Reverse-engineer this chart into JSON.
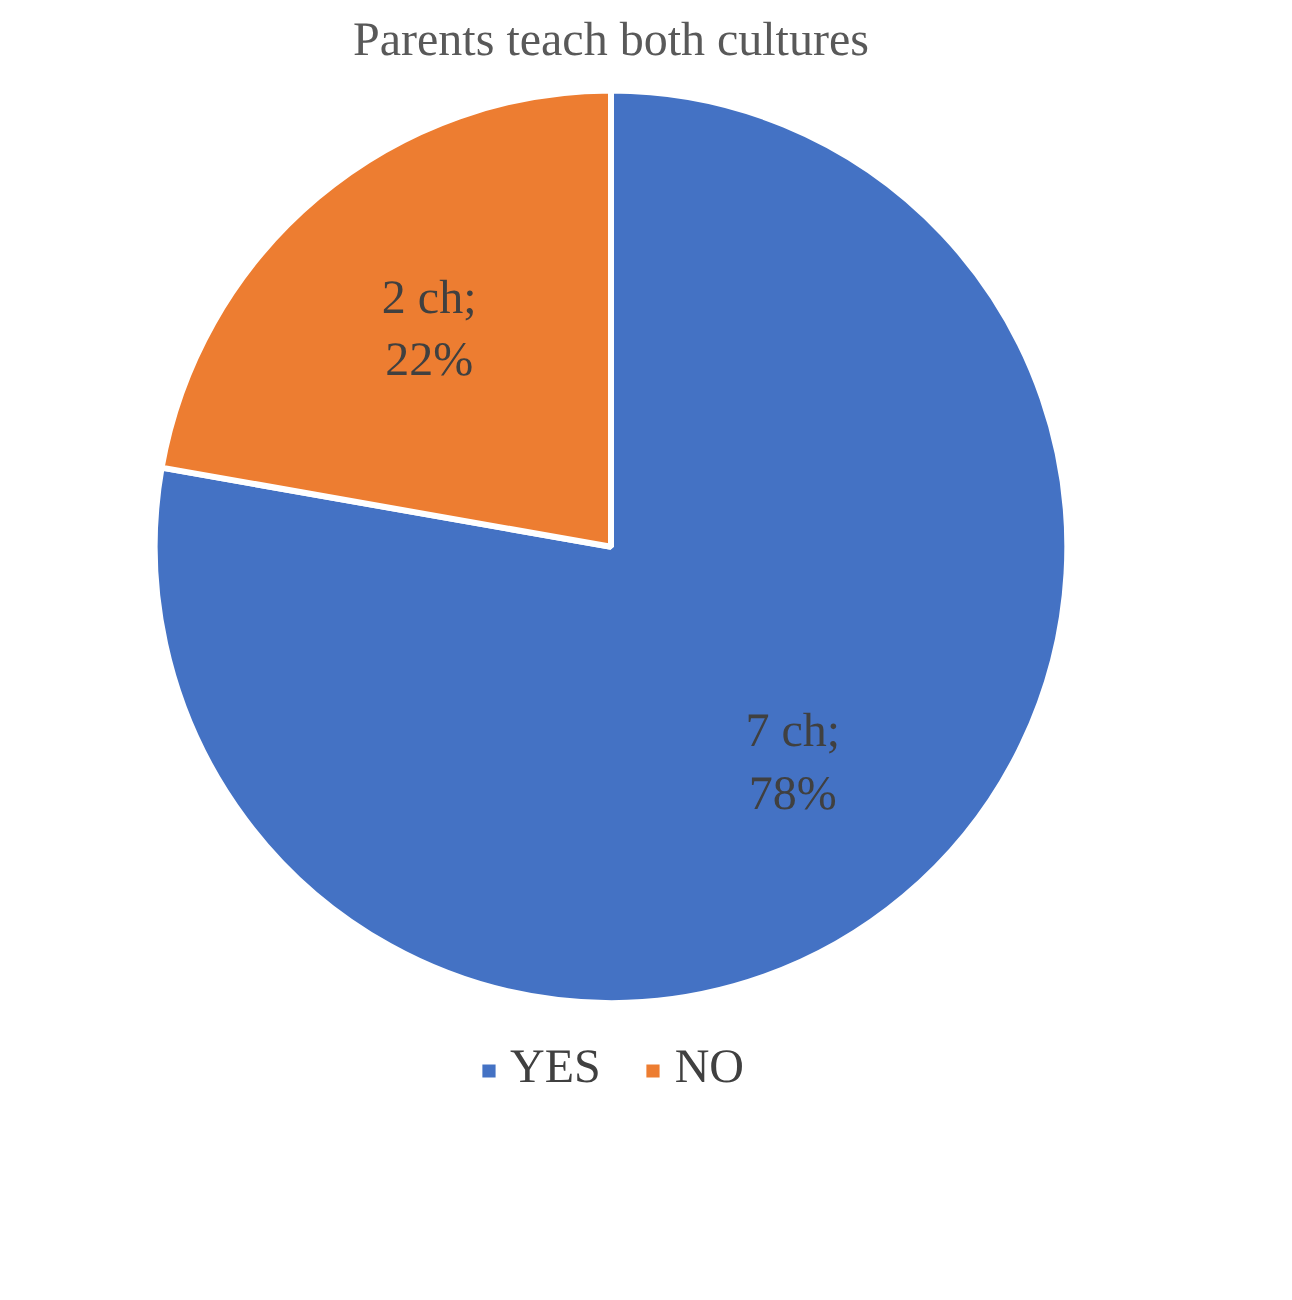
{
  "chart_data": {
    "type": "pie",
    "title": "Parents teach both cultures",
    "categories": [
      "YES",
      "NO"
    ],
    "values": [
      7,
      2
    ],
    "value_labels": [
      "7 ch; 78%",
      "2 ch; 22%"
    ],
    "colors": [
      "#4472c4",
      "#ed7d31"
    ],
    "legend": "bottom"
  }
}
